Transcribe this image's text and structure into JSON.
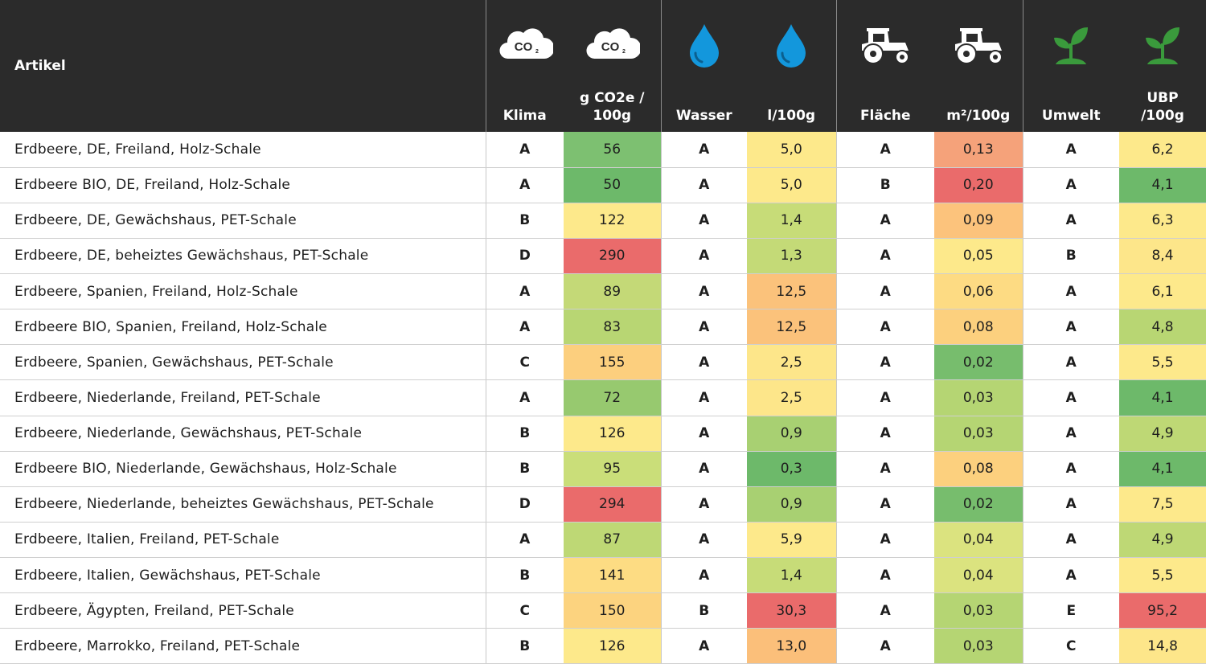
{
  "chart_data": {
    "type": "table",
    "columns": [
      {
        "key": "artikel",
        "label": "Artikel"
      },
      {
        "key": "klima",
        "label": "Klima",
        "icon": "co2-cloud-icon"
      },
      {
        "key": "co2",
        "label": "g CO2e /\n100g",
        "icon": "co2-cloud-icon"
      },
      {
        "key": "wasser",
        "label": "Wasser",
        "icon": "water-drop-icon"
      },
      {
        "key": "l100g",
        "label": "l/100g",
        "icon": "water-drop-icon"
      },
      {
        "key": "flaeche",
        "label": "Fläche",
        "icon": "tractor-icon"
      },
      {
        "key": "m2",
        "label": "m²/100g",
        "icon": "tractor-icon"
      },
      {
        "key": "umwelt",
        "label": "Umwelt",
        "icon": "plant-sprout-icon"
      },
      {
        "key": "ubp",
        "label": "UBP\n/100g",
        "icon": "plant-sprout-icon"
      }
    ],
    "rows": [
      {
        "artikel": "Erdbeere, DE, Freiland, Holz-Schale",
        "klima": "A",
        "co2": "56",
        "wasser": "A",
        "l100g": "5,0",
        "flaeche": "A",
        "m2": "0,13",
        "umwelt": "A",
        "ubp": "6,2"
      },
      {
        "artikel": "Erdbeere BIO, DE, Freiland, Holz-Schale",
        "klima": "A",
        "co2": "50",
        "wasser": "A",
        "l100g": "5,0",
        "flaeche": "B",
        "m2": "0,20",
        "umwelt": "A",
        "ubp": "4,1"
      },
      {
        "artikel": "Erdbeere, DE, Gewächshaus, PET-Schale",
        "klima": "B",
        "co2": "122",
        "wasser": "A",
        "l100g": "1,4",
        "flaeche": "A",
        "m2": "0,09",
        "umwelt": "A",
        "ubp": "6,3"
      },
      {
        "artikel": "Erdbeere, DE, beheiztes Gewächshaus, PET-Schale",
        "klima": "D",
        "co2": "290",
        "wasser": "A",
        "l100g": "1,3",
        "flaeche": "A",
        "m2": "0,05",
        "umwelt": "B",
        "ubp": "8,4"
      },
      {
        "artikel": "Erdbeere, Spanien, Freiland, Holz-Schale",
        "klima": "A",
        "co2": "89",
        "wasser": "A",
        "l100g": "12,5",
        "flaeche": "A",
        "m2": "0,06",
        "umwelt": "A",
        "ubp": "6,1"
      },
      {
        "artikel": "Erdbeere BIO, Spanien, Freiland, Holz-Schale",
        "klima": "A",
        "co2": "83",
        "wasser": "A",
        "l100g": "12,5",
        "flaeche": "A",
        "m2": "0,08",
        "umwelt": "A",
        "ubp": "4,8"
      },
      {
        "artikel": "Erdbeere, Spanien, Gewächshaus, PET-Schale",
        "klima": "C",
        "co2": "155",
        "wasser": "A",
        "l100g": "2,5",
        "flaeche": "A",
        "m2": "0,02",
        "umwelt": "A",
        "ubp": "5,5"
      },
      {
        "artikel": "Erdbeere, Niederlande, Freiland, PET-Schale",
        "klima": "A",
        "co2": "72",
        "wasser": "A",
        "l100g": "2,5",
        "flaeche": "A",
        "m2": "0,03",
        "umwelt": "A",
        "ubp": "4,1"
      },
      {
        "artikel": "Erdbeere, Niederlande, Gewächshaus, PET-Schale",
        "klima": "B",
        "co2": "126",
        "wasser": "A",
        "l100g": "0,9",
        "flaeche": "A",
        "m2": "0,03",
        "umwelt": "A",
        "ubp": "4,9"
      },
      {
        "artikel": "Erdbeere BIO, Niederlande, Gewächshaus, Holz-Schale",
        "klima": "B",
        "co2": "95",
        "wasser": "A",
        "l100g": "0,3",
        "flaeche": "A",
        "m2": "0,08",
        "umwelt": "A",
        "ubp": "4,1"
      },
      {
        "artikel": "Erdbeere, Niederlande, beheiztes Gewächshaus, PET-Schale",
        "klima": "D",
        "co2": "294",
        "wasser": "A",
        "l100g": "0,9",
        "flaeche": "A",
        "m2": "0,02",
        "umwelt": "A",
        "ubp": "7,5"
      },
      {
        "artikel": "Erdbeere, Italien, Freiland, PET-Schale",
        "klima": "A",
        "co2": "87",
        "wasser": "A",
        "l100g": "5,9",
        "flaeche": "A",
        "m2": "0,04",
        "umwelt": "A",
        "ubp": "4,9"
      },
      {
        "artikel": "Erdbeere, Italien, Gewächshaus, PET-Schale",
        "klima": "B",
        "co2": "141",
        "wasser": "A",
        "l100g": "1,4",
        "flaeche": "A",
        "m2": "0,04",
        "umwelt": "A",
        "ubp": "5,5"
      },
      {
        "artikel": "Erdbeere, Ägypten, Freiland, PET-Schale",
        "klima": "C",
        "co2": "150",
        "wasser": "B",
        "l100g": "30,3",
        "flaeche": "A",
        "m2": "0,03",
        "umwelt": "E",
        "ubp": "95,2"
      },
      {
        "artikel": "Erdbeere, Marrokko, Freiland, PET-Schale",
        "klima": "B",
        "co2": "126",
        "wasser": "A",
        "l100g": "13,0",
        "flaeche": "A",
        "m2": "0,03",
        "umwelt": "C",
        "ubp": "14,8"
      }
    ],
    "cell_colors": {
      "co2": [
        "#7dc071",
        "#6db96a",
        "#fde98b",
        "#ea6b6b",
        "#c4d977",
        "#b8d673",
        "#fccf7e",
        "#97c96f",
        "#fde98b",
        "#cade79",
        "#ea6b6b",
        "#bed875",
        "#fddc83",
        "#fcd37f",
        "#fde98b"
      ],
      "l100g": [
        "#fde98b",
        "#fde98b",
        "#c7dc78",
        "#c4da77",
        "#fbc27b",
        "#fbc27b",
        "#fde68a",
        "#fde68a",
        "#a8d072",
        "#6db96a",
        "#a8d072",
        "#fde98b",
        "#c7dc78",
        "#ea6b6b",
        "#fbbf7a"
      ],
      "m2": [
        "#f5a27a",
        "#ea6b6b",
        "#fcc37c",
        "#fde98b",
        "#fddb83",
        "#fcd07e",
        "#77bd6d",
        "#b5d573",
        "#b5d573",
        "#fcd07e",
        "#77bd6d",
        "#dbe37f",
        "#dbe37f",
        "#b5d573",
        "#b5d573"
      ],
      "ubp": [
        "#fde98b",
        "#6db96a",
        "#fde98b",
        "#fde68a",
        "#fde98b",
        "#b8d673",
        "#fde98b",
        "#6db96a",
        "#bed875",
        "#6db96a",
        "#fde98b",
        "#bed875",
        "#fde98b",
        "#ea6b6b",
        "#fde68a"
      ]
    },
    "colors": {
      "header_bg": "#2b2b2b",
      "plant_green": "#3a9a3c",
      "water_blue": "#1397dc"
    }
  }
}
